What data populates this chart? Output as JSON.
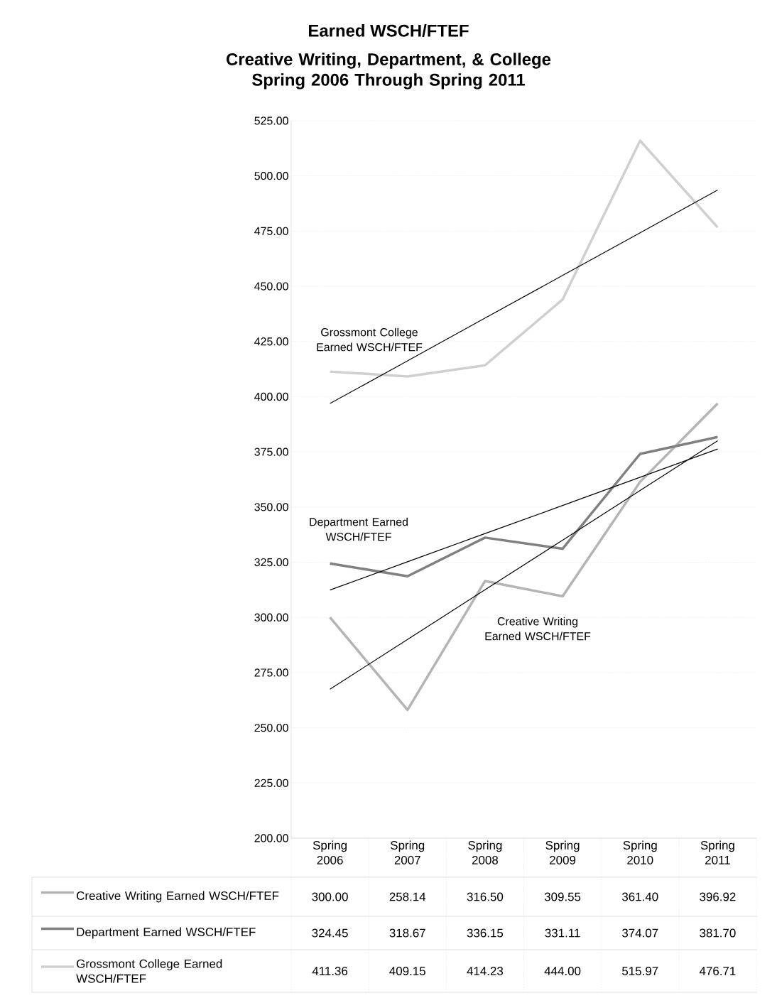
{
  "chart_data": {
    "type": "line",
    "title": "Earned WSCH/FTEF",
    "subtitle": "Creative Writing, Department, & College Spring 2006 Through Spring 2011",
    "categories": [
      "Spring 2006",
      "Spring 2007",
      "Spring 2008",
      "Spring 2009",
      "Spring 2010",
      "Spring 2011"
    ],
    "series": [
      {
        "name": "Creative Writing Earned WSCH/FTEF",
        "color": "#b4b4b4",
        "values": [
          300.0,
          258.14,
          316.5,
          309.55,
          361.4,
          396.92
        ],
        "value_labels": [
          "300.00",
          "258.14",
          "316.50",
          "309.55",
          "361.40",
          "396.92"
        ]
      },
      {
        "name": "Department Earned WSCH/FTEF",
        "color": "#808080",
        "values": [
          324.45,
          318.67,
          336.15,
          331.11,
          374.07,
          381.7
        ],
        "value_labels": [
          "324.45",
          "318.67",
          "336.15",
          "331.11",
          "374.07",
          "381.70"
        ]
      },
      {
        "name": "Grossmont College Earned WSCH/FTEF",
        "color": "#cfcfcf",
        "values": [
          411.36,
          409.15,
          414.23,
          444.0,
          515.97,
          476.71
        ],
        "value_labels": [
          "411.36",
          "409.15",
          "414.23",
          "444.00",
          "515.97",
          "476.71"
        ]
      },
      {
        "type": "line",
        "color": "#000000",
        "values": [
          267.5,
          290.0,
          312.5,
          335.0,
          357.5,
          380.0
        ]
      },
      {
        "type": "line",
        "color": "#000000",
        "values": [
          312.4,
          325.2,
          338.0,
          350.7,
          363.5,
          376.3
        ]
      },
      {
        "type": "line",
        "color": "#000000",
        "values": [
          396.9,
          416.2,
          435.6,
          454.9,
          474.2,
          493.6
        ]
      }
    ],
    "ylim": [
      200,
      525
    ],
    "yticks": [
      {
        "value": 200,
        "label": "200.00"
      },
      {
        "value": 225,
        "label": "225.00"
      },
      {
        "value": 250,
        "label": "250.00"
      },
      {
        "value": 275,
        "label": "275.00"
      },
      {
        "value": 300,
        "label": "300.00"
      },
      {
        "value": 325,
        "label": "325.00"
      },
      {
        "value": 350,
        "label": "350.00"
      },
      {
        "value": 375,
        "label": "375.00"
      },
      {
        "value": 400,
        "label": "400.00"
      },
      {
        "value": 425,
        "label": "425.00"
      },
      {
        "value": 450,
        "label": "450.00"
      },
      {
        "value": 475,
        "label": "475.00"
      },
      {
        "value": 500,
        "label": "500.00"
      },
      {
        "value": 525,
        "label": "525.00"
      }
    ],
    "grid": "y",
    "legend": "bottom",
    "annotations": [
      "Grossmont College Earned WSCH/FTEF",
      "Department Earned WSCH/FTEF",
      "Creative Writing Earned WSCH/FTEF"
    ]
  }
}
